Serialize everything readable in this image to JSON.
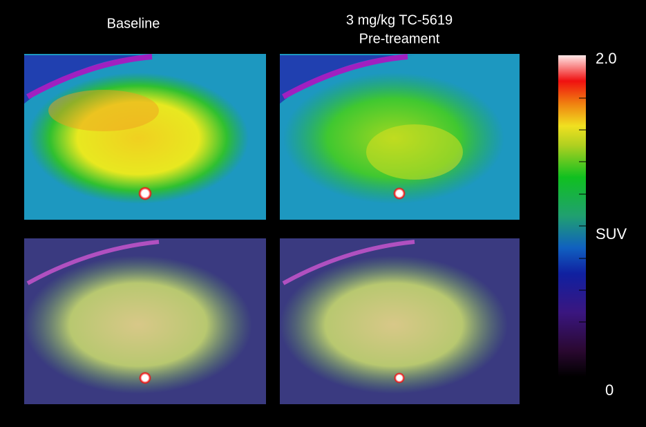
{
  "panels": {
    "baseline_title": "Baseline",
    "treatment_title_line1": "3 mg/kg TC-5619",
    "treatment_title_line2": "Pre-treament"
  },
  "colorbar": {
    "max_label": "2.0",
    "axis_label": "SUV",
    "min_label": "0"
  }
}
